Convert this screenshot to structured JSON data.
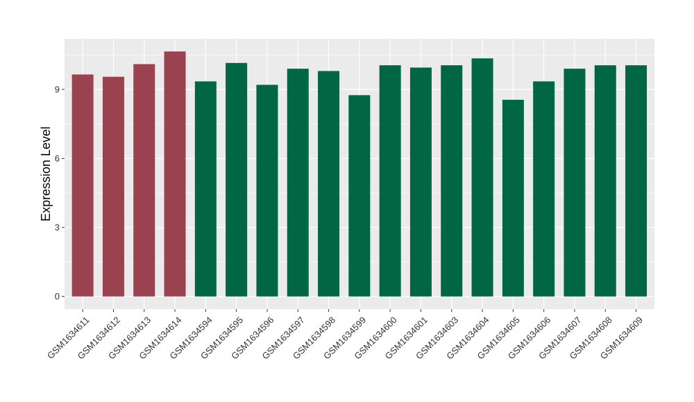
{
  "chart_data": {
    "type": "bar",
    "ylabel": "Expression Level",
    "xlabel": "",
    "ylim": [
      -0.55,
      11.2
    ],
    "yticks": [
      0,
      3,
      6,
      9
    ],
    "grid": true,
    "background_color": "#ebebeb",
    "grid_color": "#ffffff",
    "group_colors": {
      "group_a": "#9a424f",
      "group_b": "#006644"
    },
    "categories": [
      "GSM1634611",
      "GSM1634612",
      "GSM1634613",
      "GSM1634614",
      "GSM1634594",
      "GSM1634595",
      "GSM1634596",
      "GSM1634597",
      "GSM1634598",
      "GSM1634599",
      "GSM1634600",
      "GSM1634601",
      "GSM1634603",
      "GSM1634604",
      "GSM1634605",
      "GSM1634606",
      "GSM1634607",
      "GSM1634608",
      "GSM1634609"
    ],
    "values": [
      9.65,
      9.55,
      10.1,
      10.65,
      9.35,
      10.15,
      9.2,
      9.9,
      9.8,
      8.75,
      10.05,
      9.95,
      10.05,
      10.35,
      8.55,
      9.35,
      9.9,
      10.05,
      10.05
    ],
    "groups": [
      "group_a",
      "group_a",
      "group_a",
      "group_a",
      "group_b",
      "group_b",
      "group_b",
      "group_b",
      "group_b",
      "group_b",
      "group_b",
      "group_b",
      "group_b",
      "group_b",
      "group_b",
      "group_b",
      "group_b",
      "group_b",
      "group_b"
    ]
  }
}
